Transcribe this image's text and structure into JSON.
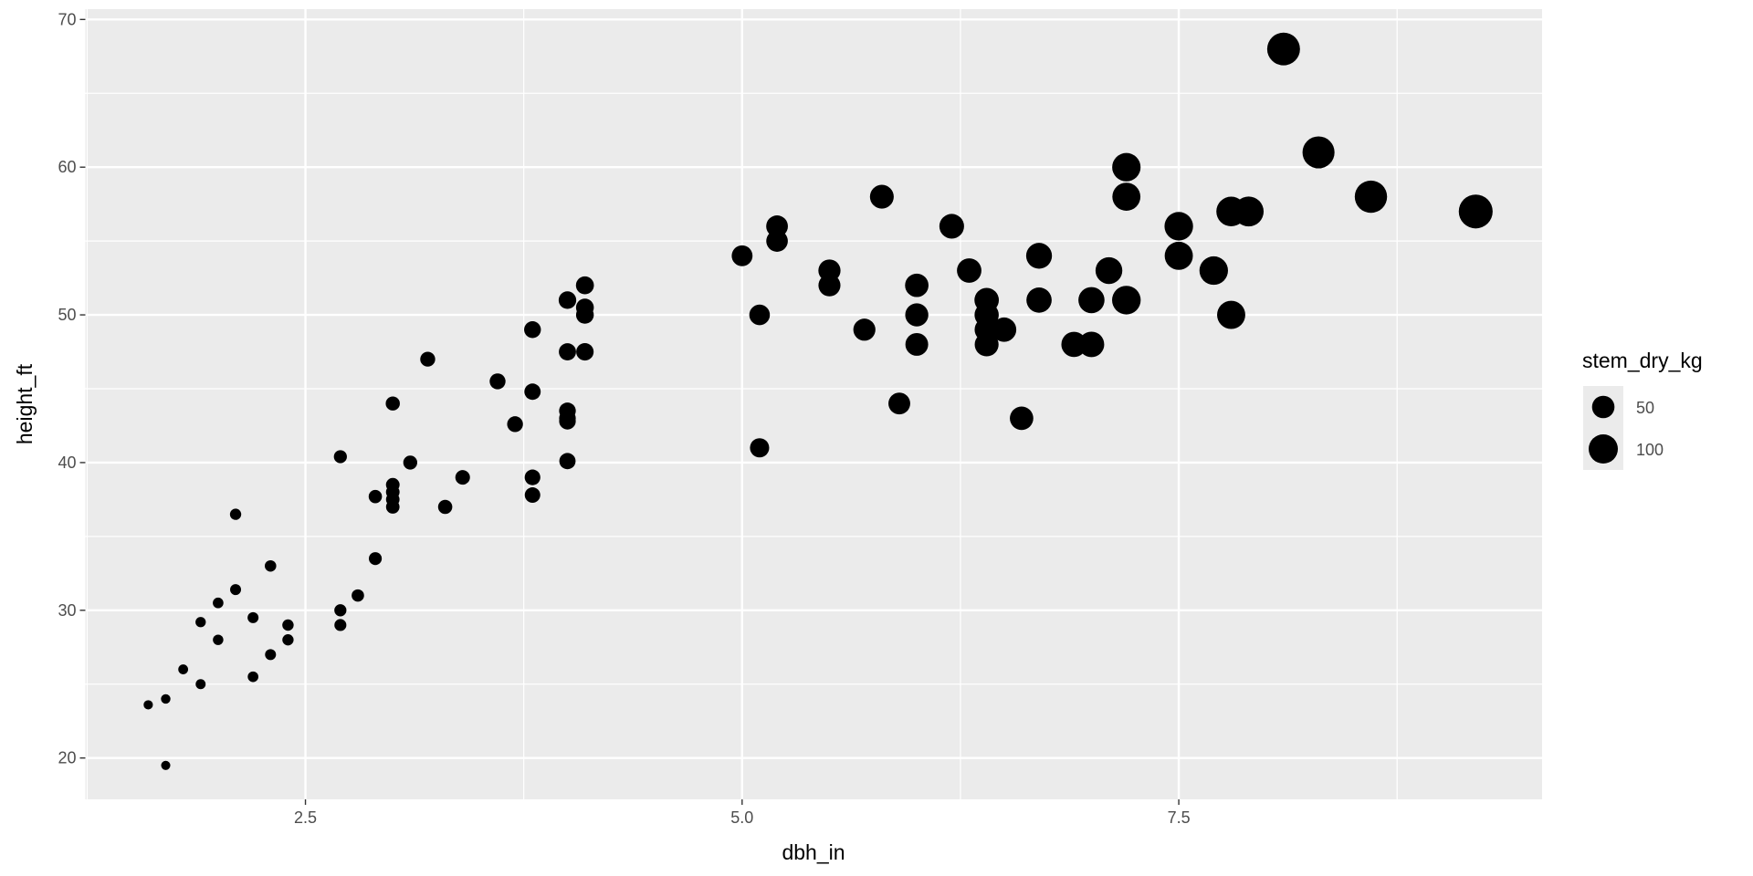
{
  "chart_data": {
    "type": "scatter",
    "title": "",
    "xlabel": "dbh_in",
    "ylabel": "height_ft",
    "xlim": [
      1.24,
      9.58
    ],
    "ylim": [
      17.2,
      70.7
    ],
    "x_ticks": [
      2.5,
      5.0,
      7.5
    ],
    "x_tick_labels": [
      "2.5",
      "5.0",
      "7.5"
    ],
    "y_ticks": [
      20,
      30,
      40,
      50,
      60,
      70
    ],
    "y_tick_labels": [
      "20",
      "30",
      "40",
      "50",
      "60",
      "70"
    ],
    "grid": true,
    "background": "#EBEBEB",
    "point_color": "#000000",
    "legend": {
      "title": "stem_dry_kg",
      "placement": "right",
      "entries": [
        {
          "label": "50",
          "value": 50
        },
        {
          "label": "100",
          "value": 100
        }
      ]
    },
    "points": [
      [
        1.6,
        23.6,
        1.8
      ],
      [
        1.7,
        24,
        2.1
      ],
      [
        1.7,
        19.5,
        1.7
      ],
      [
        1.8,
        26,
        2.5
      ],
      [
        1.9,
        29.2,
        3.2
      ],
      [
        1.9,
        25,
        2.7
      ],
      [
        2.0,
        30.5,
        3.7
      ],
      [
        2.0,
        28,
        3.4
      ],
      [
        2.1,
        36.5,
        4.8
      ],
      [
        2.1,
        31.4,
        4.2
      ],
      [
        2.2,
        29.5,
        4.3
      ],
      [
        2.2,
        25.5,
        3.7
      ],
      [
        2.3,
        33,
        5.2
      ],
      [
        2.3,
        27,
        4.3
      ],
      [
        2.4,
        29,
        5.0
      ],
      [
        2.4,
        28,
        4.8
      ],
      [
        2.7,
        40.4,
        8.8
      ],
      [
        2.7,
        30,
        6.6
      ],
      [
        2.7,
        29,
        6.3
      ],
      [
        2.8,
        31,
        7.3
      ],
      [
        2.9,
        37.7,
        9.5
      ],
      [
        2.9,
        33.5,
        8.5
      ],
      [
        3.0,
        44,
        11.9
      ],
      [
        3.0,
        38.5,
        10.4
      ],
      [
        3.0,
        38,
        10.3
      ],
      [
        3.0,
        37.5,
        10.1
      ],
      [
        3.0,
        37,
        10.0
      ],
      [
        3.1,
        40,
        11.5
      ],
      [
        3.2,
        47,
        14.4
      ],
      [
        3.3,
        37,
        12.1
      ],
      [
        3.4,
        39,
        13.5
      ],
      [
        3.6,
        45.5,
        17.7
      ],
      [
        3.7,
        42.6,
        17.5
      ],
      [
        3.8,
        49,
        21.2
      ],
      [
        3.8,
        44.8,
        19.4
      ],
      [
        3.8,
        39,
        16.9
      ],
      [
        3.8,
        37.8,
        16.4
      ],
      [
        4.0,
        51,
        24.5
      ],
      [
        4.0,
        47.5,
        22.8
      ],
      [
        4.0,
        43.5,
        20.9
      ],
      [
        4.0,
        43,
        20.6
      ],
      [
        4.0,
        42.8,
        20.5
      ],
      [
        4.0,
        40.1,
        19.2
      ],
      [
        4.1,
        52,
        26.2
      ],
      [
        4.1,
        50.5,
        25.5
      ],
      [
        4.1,
        50,
        25.2
      ],
      [
        4.1,
        47.5,
        23.9
      ],
      [
        5.0,
        54,
        40.5
      ],
      [
        5.1,
        50,
        39
      ],
      [
        5.1,
        41,
        32
      ],
      [
        5.2,
        56,
        45.4
      ],
      [
        5.2,
        55,
        44.6
      ],
      [
        5.5,
        53,
        48.1
      ],
      [
        5.5,
        52,
        47.2
      ],
      [
        5.7,
        49,
        47.8
      ],
      [
        5.8,
        58,
        58.5
      ],
      [
        5.9,
        44,
        46
      ],
      [
        6.0,
        52,
        56.2
      ],
      [
        6.0,
        50,
        54
      ],
      [
        6.0,
        48,
        51.8
      ],
      [
        6.2,
        56,
        64.6
      ],
      [
        6.3,
        53,
        63.1
      ],
      [
        6.4,
        51,
        62.7
      ],
      [
        6.4,
        50,
        61.4
      ],
      [
        6.4,
        49,
        60.2
      ],
      [
        6.4,
        48,
        59
      ],
      [
        6.5,
        49,
        62.1
      ],
      [
        6.6,
        43,
        56.2
      ],
      [
        6.7,
        54,
        72.7
      ],
      [
        6.7,
        51,
        68.7
      ],
      [
        6.9,
        48,
        68.6
      ],
      [
        7.0,
        51,
        75
      ],
      [
        7.0,
        48,
        70.6
      ],
      [
        7.1,
        53,
        80.2
      ],
      [
        7.2,
        60,
        93.3
      ],
      [
        7.2,
        58,
        90.2
      ],
      [
        7.2,
        51,
        95
      ],
      [
        7.5,
        56,
        94.5
      ],
      [
        7.5,
        54,
        91.1
      ],
      [
        7.7,
        53,
        94.3
      ],
      [
        7.8,
        57,
        104
      ],
      [
        7.8,
        50,
        91.3
      ],
      [
        7.9,
        57,
        106.7
      ],
      [
        8.1,
        68,
        133.8
      ],
      [
        8.3,
        61,
        126
      ],
      [
        8.6,
        58,
        128.7
      ],
      [
        9.2,
        57,
        144.7
      ]
    ],
    "point_fields": [
      "dbh_in",
      "height_ft",
      "stem_dry_kg"
    ]
  }
}
